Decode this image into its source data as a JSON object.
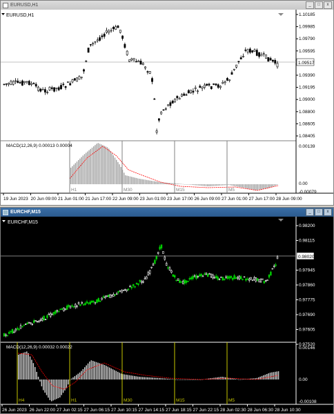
{
  "window1": {
    "title": "EURUSD,H1",
    "chart_label": "EURUSD,H1",
    "price_axis": [
      "1.10185",
      "1.09985",
      "1.09790",
      "1.09595",
      "1.09517",
      "1.09390",
      "1.09195",
      "1.09000",
      "1.08800",
      "1.08605",
      "1.08405"
    ],
    "current_price": "1.09517",
    "macd_label": "MACD(12,26,9) 0.00013 0.00004",
    "macd_axis": [
      "0.00139",
      "0.00",
      "-0.00079"
    ],
    "tf_labels": [
      "H1",
      "M30",
      "M15",
      "M5"
    ],
    "time_axis": [
      "19 Jun 2023",
      "20 Jun 09:00",
      "21 Jun 01:00",
      "21 Jun 17:00",
      "22 Jun 09:00",
      "23 Jun 01:00",
      "23 Jun 17:00",
      "26 Jun 09:00",
      "27 Jun 01:00",
      "27 Jun 17:00",
      "28 Jun 09:00"
    ]
  },
  "window2": {
    "title": "EURCHF,M15",
    "chart_label": "EURCHF,M15",
    "price_axis": [
      "0.98200",
      "0.98115",
      "0.98020",
      "0.97945",
      "0.97860",
      "0.97775",
      "0.97690",
      "0.97605",
      "0.97520"
    ],
    "current_price": "0.98020",
    "macd_label": "MACD(12,26,9) 0.00032 0.00022",
    "macd_axis": [
      "0.00146",
      "0.00",
      "-0.00108"
    ],
    "tf_labels": [
      "H4",
      "H1",
      "M30",
      "M15",
      "M5"
    ],
    "time_axis": [
      "26 Jun 2023",
      "26 Jun 22:00",
      "27 Jun 02:15",
      "27 Jun 06:15",
      "27 Jun 10:15",
      "27 Jun 14:15",
      "27 Jun 18:15",
      "27 Jun 22:15",
      "28 Jun 02:30",
      "28 Jun 06:30",
      "28 Jun 10:30"
    ]
  },
  "colors": {
    "bull": "#00d000",
    "bear": "#ffffff",
    "chart2_bg": "#000000",
    "chart1_bg": "#ffffff",
    "signal": "#ff0000"
  }
}
